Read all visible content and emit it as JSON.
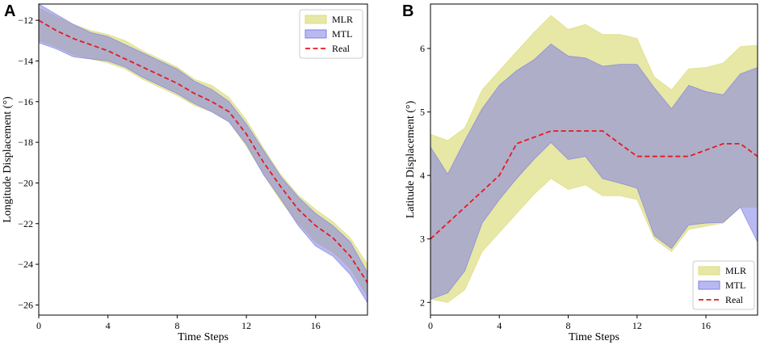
{
  "chart_data": [
    {
      "panel": "A",
      "type": "area",
      "xlabel": "Time Steps",
      "ylabel": "Longitude Displacement (°)",
      "xlim": [
        0,
        19
      ],
      "ylim": [
        -26.5,
        -11.2
      ],
      "xticks": [
        0,
        4,
        8,
        12,
        16
      ],
      "yticks": [
        -12,
        -14,
        -16,
        -18,
        -20,
        -22,
        -24,
        -26
      ],
      "legend_position": "top-right",
      "x": [
        0,
        1,
        2,
        3,
        4,
        5,
        6,
        7,
        8,
        9,
        10,
        11,
        12,
        13,
        14,
        15,
        16,
        17,
        18,
        19
      ],
      "series": [
        {
          "name": "MLR",
          "kind": "band",
          "color": "#dddd80",
          "lower": [
            -13.0,
            -13.3,
            -13.7,
            -13.9,
            -14.1,
            -14.4,
            -14.9,
            -15.3,
            -15.7,
            -16.2,
            -16.5,
            -17.0,
            -18.2,
            -19.6,
            -20.9,
            -22.0,
            -22.9,
            -23.4,
            -24.2,
            -25.6
          ],
          "upper": [
            -11.4,
            -11.8,
            -12.2,
            -12.5,
            -12.7,
            -13.0,
            -13.5,
            -13.9,
            -14.3,
            -14.9,
            -15.2,
            -15.8,
            -16.9,
            -18.3,
            -19.6,
            -20.6,
            -21.3,
            -21.9,
            -22.7,
            -24.0
          ]
        },
        {
          "name": "MTL",
          "kind": "band",
          "color": "#8080e6",
          "lower": [
            -13.1,
            -13.4,
            -13.8,
            -13.9,
            -14.0,
            -14.3,
            -14.8,
            -15.2,
            -15.6,
            -16.1,
            -16.5,
            -17.0,
            -18.1,
            -19.6,
            -20.8,
            -22.1,
            -23.1,
            -23.6,
            -24.5,
            -25.9
          ],
          "upper": [
            -11.2,
            -11.7,
            -12.2,
            -12.6,
            -12.8,
            -13.2,
            -13.6,
            -14.0,
            -14.4,
            -15.0,
            -15.4,
            -16.0,
            -17.1,
            -18.4,
            -19.7,
            -20.7,
            -21.5,
            -22.1,
            -22.9,
            -24.4
          ]
        },
        {
          "name": "Real",
          "kind": "line",
          "color": "#e8191e",
          "values": [
            -12.0,
            -12.5,
            -12.9,
            -13.2,
            -13.5,
            -13.9,
            -14.3,
            -14.7,
            -15.1,
            -15.6,
            -16.0,
            -16.5,
            -17.6,
            -19.0,
            -20.2,
            -21.3,
            -22.1,
            -22.7,
            -23.6,
            -24.9
          ]
        }
      ]
    },
    {
      "panel": "B",
      "type": "area",
      "xlabel": "Time Steps",
      "ylabel": "Latitude Displacement (°)",
      "xlim": [
        0,
        19
      ],
      "ylim": [
        1.8,
        6.7
      ],
      "xticks": [
        0,
        4,
        8,
        12,
        16
      ],
      "yticks": [
        2,
        3,
        4,
        5,
        6
      ],
      "legend_position": "bottom-right",
      "x": [
        0,
        1,
        2,
        3,
        4,
        5,
        6,
        7,
        8,
        9,
        10,
        11,
        12,
        13,
        14,
        15,
        16,
        17,
        18,
        19
      ],
      "series": [
        {
          "name": "MLR",
          "kind": "band",
          "color": "#dddd80",
          "lower": [
            2.05,
            2.0,
            2.2,
            2.8,
            3.1,
            3.4,
            3.7,
            3.95,
            3.78,
            3.85,
            3.68,
            3.68,
            3.62,
            3.0,
            2.8,
            3.15,
            3.2,
            3.25,
            3.5,
            3.5
          ],
          "upper": [
            4.65,
            4.55,
            4.75,
            5.35,
            5.65,
            5.95,
            6.25,
            6.52,
            6.3,
            6.38,
            6.22,
            6.22,
            6.16,
            5.55,
            5.35,
            5.68,
            5.7,
            5.77,
            6.03,
            6.05
          ]
        },
        {
          "name": "MTL",
          "kind": "band",
          "color": "#8080e6",
          "lower": [
            2.05,
            2.15,
            2.5,
            3.25,
            3.62,
            3.95,
            4.25,
            4.52,
            4.25,
            4.3,
            3.95,
            3.88,
            3.8,
            3.05,
            2.85,
            3.22,
            3.25,
            3.26,
            3.5,
            2.95
          ],
          "upper": [
            4.45,
            4.02,
            4.55,
            5.05,
            5.42,
            5.65,
            5.82,
            6.07,
            5.88,
            5.85,
            5.72,
            5.75,
            5.75,
            5.38,
            5.05,
            5.42,
            5.32,
            5.27,
            5.6,
            5.7
          ]
        },
        {
          "name": "Real",
          "kind": "line",
          "color": "#e8191e",
          "values": [
            3.0,
            3.25,
            3.5,
            3.75,
            4.0,
            4.5,
            4.6,
            4.7,
            4.7,
            4.7,
            4.7,
            4.5,
            4.3,
            4.3,
            4.3,
            4.3,
            4.4,
            4.5,
            4.5,
            4.3
          ]
        }
      ]
    }
  ]
}
